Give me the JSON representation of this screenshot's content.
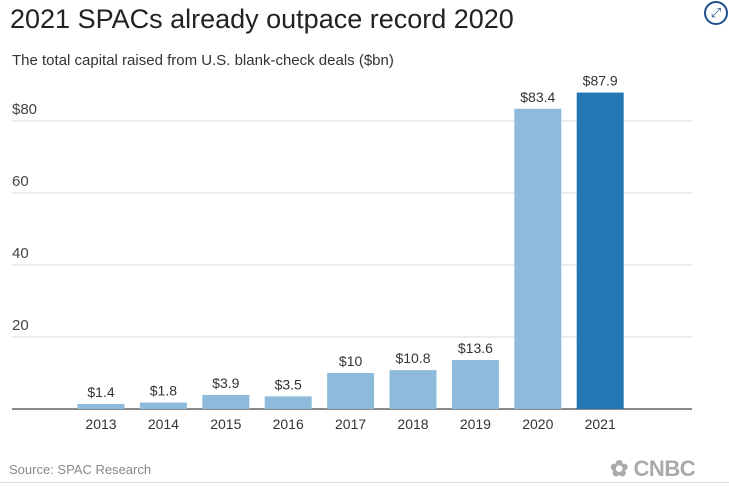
{
  "title": "2021 SPACs already outpace record 2020",
  "subtitle": "The total capital raised from U.S. blank-check deals ($bn)",
  "source": "Source: SPAC Research",
  "logo": "CNBC",
  "expand_icon": "expand-arrows-icon",
  "colors": {
    "bar": "#8ebbdc",
    "highlight": "#2277b4",
    "grid": "#d9d9d9"
  },
  "chart_data": {
    "type": "bar",
    "title": "2021 SPACs already outpace record 2020",
    "subtitle": "The total capital raised from U.S. blank-check deals ($bn)",
    "xlabel": "",
    "ylabel": "",
    "ylim": [
      0,
      90
    ],
    "yticks": [
      20,
      40,
      60,
      80
    ],
    "ytick_labels": [
      "20",
      "40",
      "60",
      "$80"
    ],
    "categories": [
      "2013",
      "2014",
      "2015",
      "2016",
      "2017",
      "2018",
      "2019",
      "2020",
      "2021"
    ],
    "values": [
      1.4,
      1.8,
      3.9,
      3.5,
      10,
      10.8,
      13.6,
      83.4,
      87.9
    ],
    "data_labels": [
      "$1.4",
      "$1.8",
      "$3.9",
      "$3.5",
      "$10",
      "$10.8",
      "$13.6",
      "$83.4",
      "$87.9"
    ],
    "highlight": "2021",
    "grid": true
  }
}
